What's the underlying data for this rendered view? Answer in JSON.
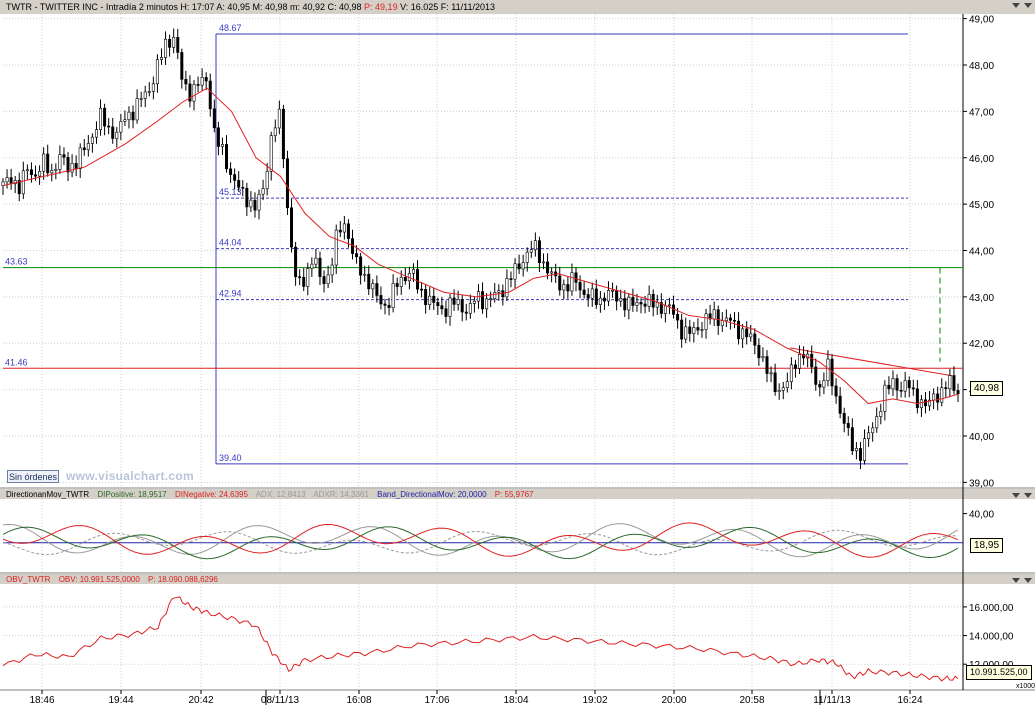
{
  "header": {
    "symbol": "TWTR",
    "name": "TWITTER INC",
    "interval": "Intradía 2 minutos",
    "quote": "H: 17:07  A: 40,95  M: 40,98  m: 40,92  C: 40,98",
    "p_label": "P: 49,19",
    "tail": "V: 16.025  F: 11/11/2013"
  },
  "buttons": {
    "orders": "Sin órdenes"
  },
  "watermark": "www.visualchart.com",
  "colors": {
    "price_line": "#000000",
    "ma": "#e02020",
    "level": "#3a3ac0",
    "ref_green": "#008800",
    "ref_red": "#e02020",
    "di_pos": "#2d6a2d",
    "di_neg": "#e02020",
    "adx": "#9a9a9a",
    "band": "#2222aa",
    "obv": "#e02020"
  },
  "chart_data": [
    {
      "type": "candlestick",
      "title": "TWTR - TWITTER INC - Intradía 2 minutos",
      "x_ticks": [
        "18:46",
        "19:44",
        "20:42",
        "08/11/13",
        "16:08",
        "17:06",
        "18:04",
        "19:02",
        "20:00",
        "20:58",
        "11/11/13",
        "16:24"
      ],
      "y_ticks": [
        "49,00",
        "48,00",
        "47,00",
        "46,00",
        "45,00",
        "44,00",
        "43,00",
        "42,00",
        "41,00",
        "40,00",
        "39,00"
      ],
      "ylim": [
        38.9,
        49.1
      ],
      "last_price": "40,98",
      "fib_levels": [
        {
          "label": "48.67",
          "value": 48.67
        },
        {
          "label": "45.13",
          "value": 45.13
        },
        {
          "label": "44.04",
          "value": 44.04
        },
        {
          "label": "42.94",
          "value": 42.94
        },
        {
          "label": "39.40",
          "value": 39.4
        }
      ],
      "ref_lines": [
        {
          "label": "43.63",
          "value": 43.63,
          "color": "green"
        },
        {
          "label": "41.46",
          "value": 41.46,
          "color": "red"
        }
      ],
      "close_path": [
        {
          "x": 0,
          "y": 45.4
        },
        {
          "x": 0.02,
          "y": 45.6
        },
        {
          "x": 0.04,
          "y": 45.3
        },
        {
          "x": 0.06,
          "y": 45.8
        },
        {
          "x": 0.08,
          "y": 45.6
        },
        {
          "x": 0.1,
          "y": 45.9
        },
        {
          "x": 0.12,
          "y": 45.7
        },
        {
          "x": 0.14,
          "y": 46.0
        },
        {
          "x": 0.16,
          "y": 45.8
        },
        {
          "x": 0.18,
          "y": 45.9
        },
        {
          "x": 0.2,
          "y": 46.2
        },
        {
          "x": 0.22,
          "y": 46.5
        },
        {
          "x": 0.24,
          "y": 46.9
        },
        {
          "x": 0.26,
          "y": 46.6
        },
        {
          "x": 0.28,
          "y": 46.5
        },
        {
          "x": 0.3,
          "y": 46.9
        },
        {
          "x": 0.32,
          "y": 47.0
        },
        {
          "x": 0.34,
          "y": 47.3
        },
        {
          "x": 0.36,
          "y": 47.5
        },
        {
          "x": 0.38,
          "y": 48.0
        },
        {
          "x": 0.4,
          "y": 48.5
        },
        {
          "x": 0.42,
          "y": 48.6
        },
        {
          "x": 0.44,
          "y": 47.6
        },
        {
          "x": 0.46,
          "y": 47.4
        },
        {
          "x": 0.48,
          "y": 47.6
        },
        {
          "x": 0.5,
          "y": 47.7
        },
        {
          "x": 0.52,
          "y": 46.4
        },
        {
          "x": 0.54,
          "y": 46.1
        },
        {
          "x": 0.56,
          "y": 45.6
        },
        {
          "x": 0.58,
          "y": 45.3
        },
        {
          "x": 0.6,
          "y": 45.1
        },
        {
          "x": 0.62,
          "y": 44.9
        },
        {
          "x": 0.64,
          "y": 45.4
        },
        {
          "x": 0.66,
          "y": 46.6
        },
        {
          "x": 0.68,
          "y": 46.9
        },
        {
          "x": 0.7,
          "y": 44.6
        },
        {
          "x": 0.72,
          "y": 43.2
        },
        {
          "x": 0.74,
          "y": 43.4
        },
        {
          "x": 0.76,
          "y": 43.9
        },
        {
          "x": 0.78,
          "y": 43.3
        },
        {
          "x": 0.8,
          "y": 43.5
        },
        {
          "x": 0.82,
          "y": 44.4
        },
        {
          "x": 0.84,
          "y": 44.6
        },
        {
          "x": 0.86,
          "y": 43.8
        },
        {
          "x": 0.88,
          "y": 43.5
        },
        {
          "x": 0.9,
          "y": 43.3
        },
        {
          "x": 0.92,
          "y": 42.9
        },
        {
          "x": 0.94,
          "y": 42.8
        },
        {
          "x": 0.96,
          "y": 43.2
        },
        {
          "x": 0.98,
          "y": 43.4
        },
        {
          "x": 1.0,
          "y": 43.6
        },
        {
          "x": 1.02,
          "y": 43.1
        },
        {
          "x": 1.04,
          "y": 43.0
        },
        {
          "x": 1.06,
          "y": 42.8
        },
        {
          "x": 1.08,
          "y": 42.7
        },
        {
          "x": 1.1,
          "y": 42.9
        },
        {
          "x": 1.12,
          "y": 42.8
        },
        {
          "x": 1.14,
          "y": 42.7
        },
        {
          "x": 1.16,
          "y": 43.0
        },
        {
          "x": 1.18,
          "y": 42.9
        },
        {
          "x": 1.2,
          "y": 43.0
        },
        {
          "x": 1.22,
          "y": 43.1
        },
        {
          "x": 1.24,
          "y": 43.4
        },
        {
          "x": 1.26,
          "y": 43.6
        },
        {
          "x": 1.28,
          "y": 43.9
        },
        {
          "x": 1.3,
          "y": 44.1
        },
        {
          "x": 1.32,
          "y": 43.8
        },
        {
          "x": 1.34,
          "y": 43.5
        },
        {
          "x": 1.36,
          "y": 43.3
        },
        {
          "x": 1.38,
          "y": 43.2
        },
        {
          "x": 1.4,
          "y": 43.4
        },
        {
          "x": 1.42,
          "y": 43.1
        },
        {
          "x": 1.44,
          "y": 43.0
        },
        {
          "x": 1.46,
          "y": 42.9
        },
        {
          "x": 1.48,
          "y": 43.1
        },
        {
          "x": 1.5,
          "y": 43.0
        },
        {
          "x": 1.52,
          "y": 42.9
        },
        {
          "x": 1.54,
          "y": 42.8
        },
        {
          "x": 1.56,
          "y": 42.9
        },
        {
          "x": 1.58,
          "y": 42.9
        },
        {
          "x": 1.6,
          "y": 42.8
        },
        {
          "x": 1.62,
          "y": 42.8
        },
        {
          "x": 1.64,
          "y": 42.7
        },
        {
          "x": 1.66,
          "y": 42.3
        },
        {
          "x": 1.68,
          "y": 42.2
        },
        {
          "x": 1.7,
          "y": 42.3
        },
        {
          "x": 1.72,
          "y": 42.5
        },
        {
          "x": 1.74,
          "y": 42.6
        },
        {
          "x": 1.76,
          "y": 42.5
        },
        {
          "x": 1.78,
          "y": 42.5
        },
        {
          "x": 1.8,
          "y": 42.3
        },
        {
          "x": 1.82,
          "y": 42.2
        },
        {
          "x": 1.84,
          "y": 42.0
        },
        {
          "x": 1.86,
          "y": 41.7
        },
        {
          "x": 1.88,
          "y": 41.2
        },
        {
          "x": 1.9,
          "y": 41.0
        },
        {
          "x": 1.92,
          "y": 41.1
        },
        {
          "x": 1.94,
          "y": 41.6
        },
        {
          "x": 1.96,
          "y": 41.8
        },
        {
          "x": 1.98,
          "y": 41.5
        },
        {
          "x": 2.0,
          "y": 41.0
        },
        {
          "x": 2.02,
          "y": 41.5
        },
        {
          "x": 2.04,
          "y": 40.9
        },
        {
          "x": 2.06,
          "y": 40.3
        },
        {
          "x": 2.08,
          "y": 39.8
        },
        {
          "x": 2.1,
          "y": 39.6
        },
        {
          "x": 2.12,
          "y": 40.0
        },
        {
          "x": 2.14,
          "y": 40.4
        },
        {
          "x": 2.16,
          "y": 40.9
        },
        {
          "x": 2.18,
          "y": 41.2
        },
        {
          "x": 2.2,
          "y": 41.0
        },
        {
          "x": 2.22,
          "y": 41.1
        },
        {
          "x": 2.24,
          "y": 40.8
        },
        {
          "x": 2.26,
          "y": 40.6
        },
        {
          "x": 2.28,
          "y": 40.9
        },
        {
          "x": 2.3,
          "y": 40.9
        },
        {
          "x": 2.32,
          "y": 41.2
        },
        {
          "x": 2.34,
          "y": 40.98
        }
      ],
      "moving_average": [
        {
          "x": 0,
          "y": 45.4
        },
        {
          "x": 0.2,
          "y": 45.8
        },
        {
          "x": 0.3,
          "y": 46.3
        },
        {
          "x": 0.38,
          "y": 46.8
        },
        {
          "x": 0.44,
          "y": 47.2
        },
        {
          "x": 0.5,
          "y": 47.5
        },
        {
          "x": 0.56,
          "y": 47.0
        },
        {
          "x": 0.62,
          "y": 46.0
        },
        {
          "x": 0.68,
          "y": 45.6
        },
        {
          "x": 0.74,
          "y": 44.8
        },
        {
          "x": 0.8,
          "y": 44.3
        },
        {
          "x": 0.86,
          "y": 44.1
        },
        {
          "x": 0.92,
          "y": 43.7
        },
        {
          "x": 1.0,
          "y": 43.4
        },
        {
          "x": 1.08,
          "y": 43.1
        },
        {
          "x": 1.16,
          "y": 43.0
        },
        {
          "x": 1.24,
          "y": 43.1
        },
        {
          "x": 1.3,
          "y": 43.4
        },
        {
          "x": 1.36,
          "y": 43.5
        },
        {
          "x": 1.44,
          "y": 43.3
        },
        {
          "x": 1.52,
          "y": 43.1
        },
        {
          "x": 1.6,
          "y": 42.9
        },
        {
          "x": 1.68,
          "y": 42.6
        },
        {
          "x": 1.76,
          "y": 42.5
        },
        {
          "x": 1.84,
          "y": 42.3
        },
        {
          "x": 1.92,
          "y": 41.9
        },
        {
          "x": 2.0,
          "y": 41.6
        },
        {
          "x": 2.06,
          "y": 41.2
        },
        {
          "x": 2.12,
          "y": 40.7
        },
        {
          "x": 2.18,
          "y": 40.8
        },
        {
          "x": 2.24,
          "y": 40.7
        },
        {
          "x": 2.3,
          "y": 40.8
        },
        {
          "x": 2.34,
          "y": 40.9
        }
      ]
    },
    {
      "type": "line",
      "title": "DirectionanMov_TWTR",
      "legend": [
        {
          "label": "DIPositive: 18,9517",
          "color": "#2d6a2d"
        },
        {
          "label": "DINegative: 24,6395",
          "color": "#e02020"
        },
        {
          "label": "ADX: 12,8413",
          "color": "#9a9a9a"
        },
        {
          "label": "ADXR: 14,3361",
          "color": "#9a9a9a"
        },
        {
          "label": "Band_DirectionalMov: 20,0000",
          "color": "#2222aa"
        },
        {
          "label": "P: 55,9767",
          "color": "#e02020"
        }
      ],
      "y_ticks": [
        "40,00"
      ],
      "last_value": "18,95"
    },
    {
      "type": "line",
      "title": "OBV_TWTR",
      "legend": [
        {
          "label": "OBV: 10.991.525,0000",
          "color": "#e02020"
        },
        {
          "label": "P: 18.090.088,6296",
          "color": "#e02020"
        }
      ],
      "y_ticks": [
        "16.000,00",
        "14.000,00",
        "12.000,00"
      ],
      "y_unit": "x1000",
      "last_value": "10.991.525,00"
    }
  ]
}
